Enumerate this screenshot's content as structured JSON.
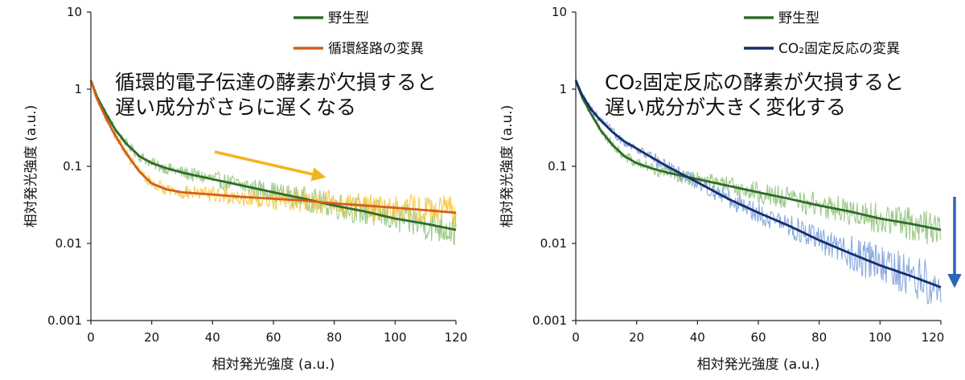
{
  "chart_data": [
    {
      "type": "line",
      "xlabel": "相対発光強度 (a.u.)",
      "ylabel": "相対発光強度 (a.u.)",
      "xlim": [
        0,
        120
      ],
      "ylim": [
        0.001,
        10
      ],
      "yscale": "log",
      "x_ticks": [
        "0",
        "20",
        "40",
        "60",
        "80",
        "100",
        "120"
      ],
      "y_ticks": [
        "0.001",
        "0.01",
        "0.1",
        "1",
        "10"
      ],
      "legend_position": "top-right",
      "annotation_lines": [
        "循環的電子伝達の酵素が欠損すると",
        "遅い成分がさらに遅くなる"
      ],
      "arrow_color": "#F2B41B",
      "series": [
        {
          "name": "野生型",
          "color": "#2F6B2A",
          "noise_color": "#93C47D",
          "x": [
            0,
            2,
            5,
            8,
            12,
            16,
            20,
            25,
            30,
            40,
            50,
            60,
            70,
            80,
            90,
            100,
            110,
            120
          ],
          "y": [
            1.3,
            0.8,
            0.48,
            0.3,
            0.19,
            0.135,
            0.11,
            0.094,
            0.083,
            0.068,
            0.056,
            0.046,
            0.038,
            0.031,
            0.026,
            0.021,
            0.018,
            0.015
          ]
        },
        {
          "name": "循環経路の変異",
          "color": "#D35F1A",
          "noise_color": "#F5C842",
          "x": [
            0,
            2,
            5,
            8,
            12,
            16,
            20,
            25,
            30,
            40,
            50,
            60,
            70,
            80,
            90,
            100,
            110,
            120
          ],
          "y": [
            1.3,
            0.75,
            0.42,
            0.25,
            0.14,
            0.085,
            0.06,
            0.05,
            0.046,
            0.043,
            0.04,
            0.038,
            0.036,
            0.033,
            0.031,
            0.029,
            0.027,
            0.025
          ]
        }
      ]
    },
    {
      "type": "line",
      "xlabel": "相対発光強度 (a.u.)",
      "ylabel": "相対発光強度 (a.u.)",
      "xlim": [
        0,
        120
      ],
      "ylim": [
        0.001,
        10
      ],
      "yscale": "log",
      "x_ticks": [
        "0",
        "20",
        "40",
        "60",
        "80",
        "100",
        "120"
      ],
      "y_ticks": [
        "0.001",
        "0.01",
        "0.1",
        "1",
        "10"
      ],
      "legend_position": "top-right",
      "annotation_lines": [
        "CO₂固定反応の酵素が欠損すると",
        "遅い成分が大きく変化する"
      ],
      "arrow_color": "#2E64B5",
      "series": [
        {
          "name": "野生型",
          "color": "#2F6B2A",
          "noise_color": "#93C47D",
          "x": [
            0,
            2,
            5,
            8,
            12,
            16,
            20,
            25,
            30,
            40,
            50,
            60,
            70,
            80,
            90,
            100,
            110,
            120
          ],
          "y": [
            1.3,
            0.8,
            0.48,
            0.3,
            0.19,
            0.135,
            0.11,
            0.094,
            0.083,
            0.068,
            0.056,
            0.046,
            0.038,
            0.031,
            0.026,
            0.021,
            0.018,
            0.015
          ]
        },
        {
          "name": "CO₂固定反応の変異",
          "color": "#142F6B",
          "noise_color": "#7FA2D9",
          "x": [
            0,
            2,
            5,
            8,
            12,
            16,
            20,
            25,
            30,
            40,
            50,
            60,
            70,
            80,
            90,
            100,
            110,
            120
          ],
          "y": [
            1.3,
            0.85,
            0.55,
            0.4,
            0.28,
            0.21,
            0.17,
            0.13,
            0.1,
            0.062,
            0.038,
            0.025,
            0.017,
            0.011,
            0.0075,
            0.0052,
            0.0038,
            0.0027
          ]
        }
      ]
    }
  ]
}
